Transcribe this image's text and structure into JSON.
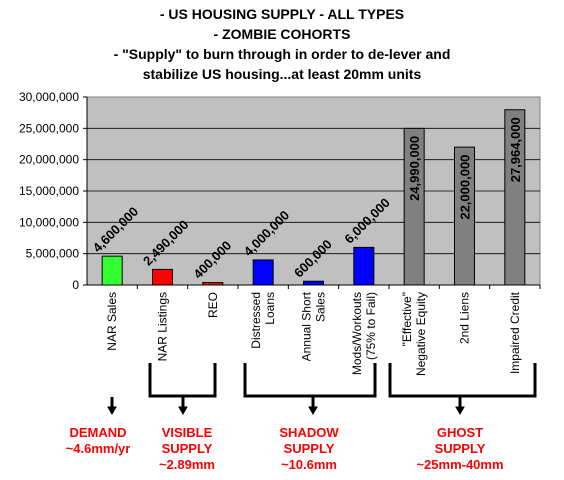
{
  "title_lines": [
    "- US HOUSING SUPPLY - ALL TYPES",
    "- ZOMBIE COHORTS",
    "- \"Supply\" to burn through in order to de-lever and",
    "stabilize US housing...at least 20mm units"
  ],
  "chart_data": {
    "type": "bar",
    "title": "- US HOUSING SUPPLY - ALL TYPES - ZOMBIE COHORTS - \"Supply\" to burn through in order to de-lever and stabilize US housing...at least 20mm units",
    "categories": [
      [
        "NAR Sales"
      ],
      [
        "NAR Listings"
      ],
      [
        "REO"
      ],
      [
        "Distressed",
        "Loans"
      ],
      [
        "Annual Short",
        "Sales"
      ],
      [
        "Mods/Workouts",
        "(75% to Fail)"
      ],
      [
        "\"Effective\"",
        "Negative Equity"
      ],
      [
        "2nd Liens"
      ],
      [
        "Impaired Credit"
      ]
    ],
    "values": [
      4600000,
      2490000,
      400000,
      4000000,
      600000,
      6000000,
      24990000,
      22000000,
      27964000
    ],
    "value_labels": [
      "4,600,000",
      "2,490,000",
      "400,000",
      "4,000,000",
      "600,000",
      "6,000,000",
      "24,990,000",
      "22,000,000",
      "27,964,000"
    ],
    "colors": [
      "#33ff33",
      "#ff0000",
      "#ff0000",
      "#0000ff",
      "#0000ff",
      "#0000ff",
      "#808080",
      "#808080",
      "#808080"
    ],
    "yticks": [
      "0",
      "5,000,000",
      "10,000,000",
      "15,000,000",
      "20,000,000",
      "25,000,000",
      "30,000,000"
    ],
    "ylim": [
      0,
      30000000
    ],
    "plot_background": "#c0c0c0",
    "grid": true,
    "xlabel": "",
    "ylabel": ""
  },
  "groups": [
    {
      "label": [
        "DEMAND",
        "~4.6mm/yr"
      ],
      "color": "#ff0000"
    },
    {
      "label": [
        "VISIBLE",
        "SUPPLY",
        "~2.89mm"
      ],
      "color": "#ff0000"
    },
    {
      "label": [
        "SHADOW",
        "SUPPLY",
        "~10.6mm"
      ],
      "color": "#ff0000"
    },
    {
      "label": [
        "GHOST",
        "SUPPLY",
        "~25mm-40mm"
      ],
      "color": "#ff0000"
    }
  ]
}
